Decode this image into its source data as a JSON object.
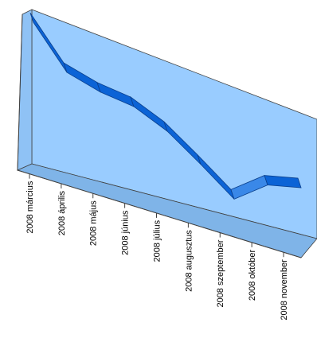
{
  "chart_data": {
    "type": "line",
    "style": "3d-ribbon",
    "categories": [
      "2008 március",
      "2008 április",
      "2008 május",
      "2008 június",
      "2008 július",
      "2008 augusztus",
      "2008 szeptember",
      "2008 október",
      "2008 november"
    ],
    "series": [
      {
        "values": [
          98,
          76,
          72,
          71,
          64,
          52,
          39,
          55,
          61
        ]
      }
    ],
    "ylim": [
      0,
      100
    ],
    "grid": false,
    "legend": "none",
    "colors": {
      "plot_back": "#99ccff",
      "wall_top": "#a8d2ff",
      "wall_side": "#8fc2f5",
      "floor": "#7fb4e8",
      "ribbon_front": "#0b63d6",
      "ribbon_top": "#3a88e8",
      "ribbon_edge": "#0a3f8c",
      "axis": "#404040"
    }
  }
}
